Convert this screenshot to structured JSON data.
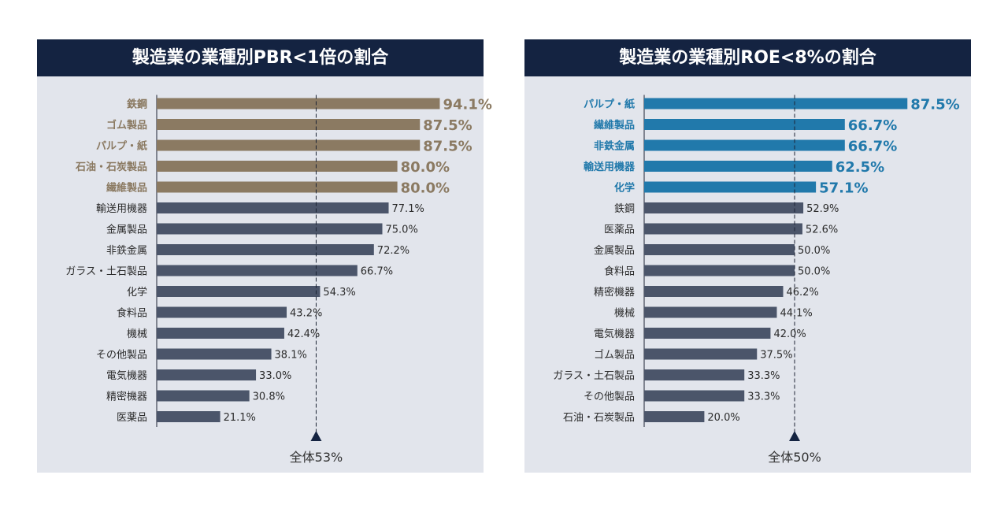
{
  "colors": {
    "header_bg": "#142341",
    "panel_bg": "#e2e5ec",
    "bar_default": "#4b556a",
    "text_default": "#2b2b2b"
  },
  "chart_data": [
    {
      "type": "bar",
      "orientation": "horizontal",
      "title": "製造業の業種別PBR<1倍の割合",
      "xlim": [
        0,
        100
      ],
      "highlight_color": "#8b7a62",
      "highlight_count": 5,
      "reference": {
        "value": 53,
        "label": "全体53%"
      },
      "categories": [
        "鉄鋼",
        "ゴム製品",
        "パルプ・紙",
        "石油・石炭製品",
        "繊維製品",
        "輸送用機器",
        "金属製品",
        "非鉄金属",
        "ガラス・土石製品",
        "化学",
        "食料品",
        "機械",
        "その他製品",
        "電気機器",
        "精密機器",
        "医薬品"
      ],
      "values": [
        94.1,
        87.5,
        87.5,
        80.0,
        80.0,
        77.1,
        75.0,
        72.2,
        66.7,
        54.3,
        43.2,
        42.4,
        38.1,
        33.0,
        30.8,
        21.1
      ],
      "value_labels": [
        "94.1%",
        "87.5%",
        "87.5%",
        "80.0%",
        "80.0%",
        "77.1%",
        "75.0%",
        "72.2%",
        "66.7%",
        "54.3%",
        "43.2%",
        "42.4%",
        "38.1%",
        "33.0%",
        "30.8%",
        "21.1%"
      ]
    },
    {
      "type": "bar",
      "orientation": "horizontal",
      "title": "製造業の業種別ROE<8%の割合",
      "xlim": [
        0,
        100
      ],
      "highlight_color": "#2179ab",
      "highlight_count": 5,
      "reference": {
        "value": 50,
        "label": "全体50%"
      },
      "categories": [
        "パルプ・紙",
        "繊維製品",
        "非鉄金属",
        "輸送用機器",
        "化学",
        "鉄鋼",
        "医薬品",
        "金属製品",
        "食料品",
        "精密機器",
        "機械",
        "電気機器",
        "ゴム製品",
        "ガラス・土石製品",
        "その他製品",
        "石油・石炭製品"
      ],
      "values": [
        87.5,
        66.7,
        66.7,
        62.5,
        57.1,
        52.9,
        52.6,
        50.0,
        50.0,
        46.2,
        44.1,
        42.0,
        37.5,
        33.3,
        33.3,
        20.0
      ],
      "value_labels": [
        "87.5%",
        "66.7%",
        "66.7%",
        "62.5%",
        "57.1%",
        "52.9%",
        "52.6%",
        "50.0%",
        "50.0%",
        "46.2%",
        "44.1%",
        "42.0%",
        "37.5%",
        "33.3%",
        "33.3%",
        "20.0%"
      ]
    }
  ]
}
